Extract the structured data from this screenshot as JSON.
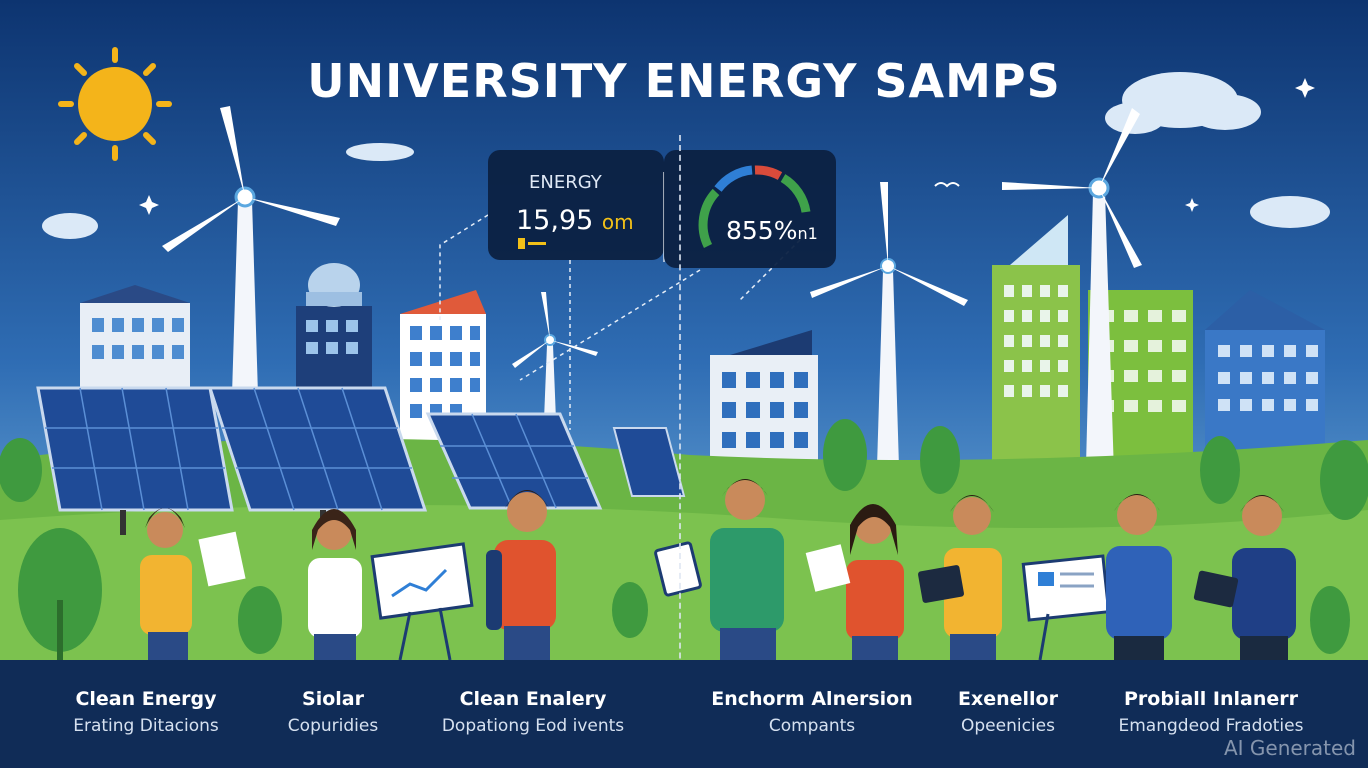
{
  "title": "UNIVERSITY ENERGY SAMPS",
  "energy_card": {
    "label": "ENERGY",
    "value": "15,95",
    "unit": "om"
  },
  "gauge": {
    "value": "855%",
    "suffix": "n1",
    "colors": [
      "#3fa14a",
      "#2f7fd6",
      "#d94b3b",
      "#3fa14a"
    ]
  },
  "captions": [
    {
      "title": "Clean Energy",
      "subtitle": "Erating Ditacions"
    },
    {
      "title": "Siolar",
      "subtitle": "Copuridies"
    },
    {
      "title": "Clean Enalery",
      "subtitle": "Dopationg Eod ivents"
    },
    {
      "title": "Enchorm Alnersion",
      "subtitle": "Compants"
    },
    {
      "title": "Exenellor",
      "subtitle": "Opeenicies"
    },
    {
      "title": "Probiall Inlanerr",
      "subtitle": "Emangdeod Fradoties"
    }
  ],
  "watermark": "AI Generated",
  "colors": {
    "sky_top": "#0f3a78",
    "sky_bottom": "#3f86c8",
    "grass": "#6bb545",
    "bottom_bar": "#102c57",
    "sun": "#f4b41a"
  }
}
